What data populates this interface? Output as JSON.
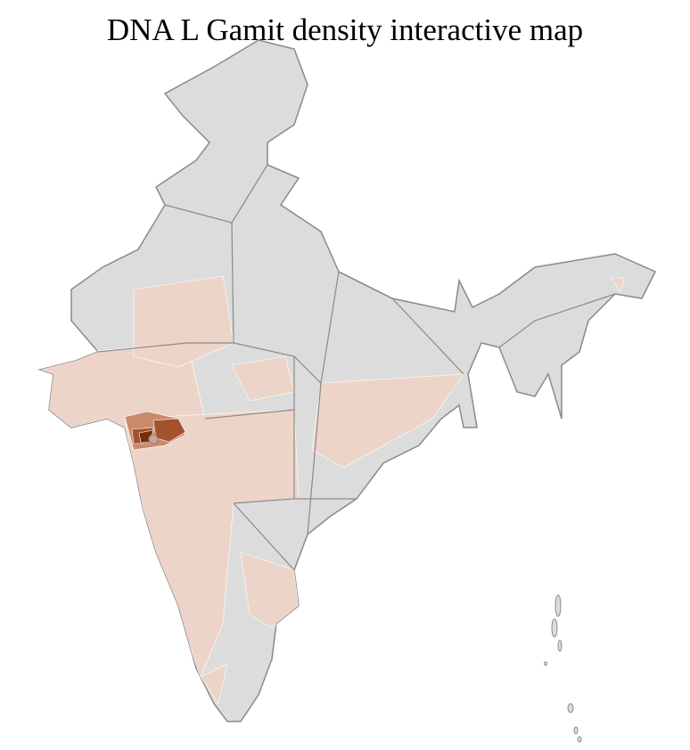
{
  "title": "DNA L Gamit density interactive map",
  "colors": {
    "no_data": "#dcdcdc",
    "border": "#8a8a8a",
    "district_line": "#ffffff",
    "density_low": "#ecd5c8",
    "density_mid": "#c98a6c",
    "density_high": "#a4512f",
    "density_max": "#7a2a0c"
  }
}
